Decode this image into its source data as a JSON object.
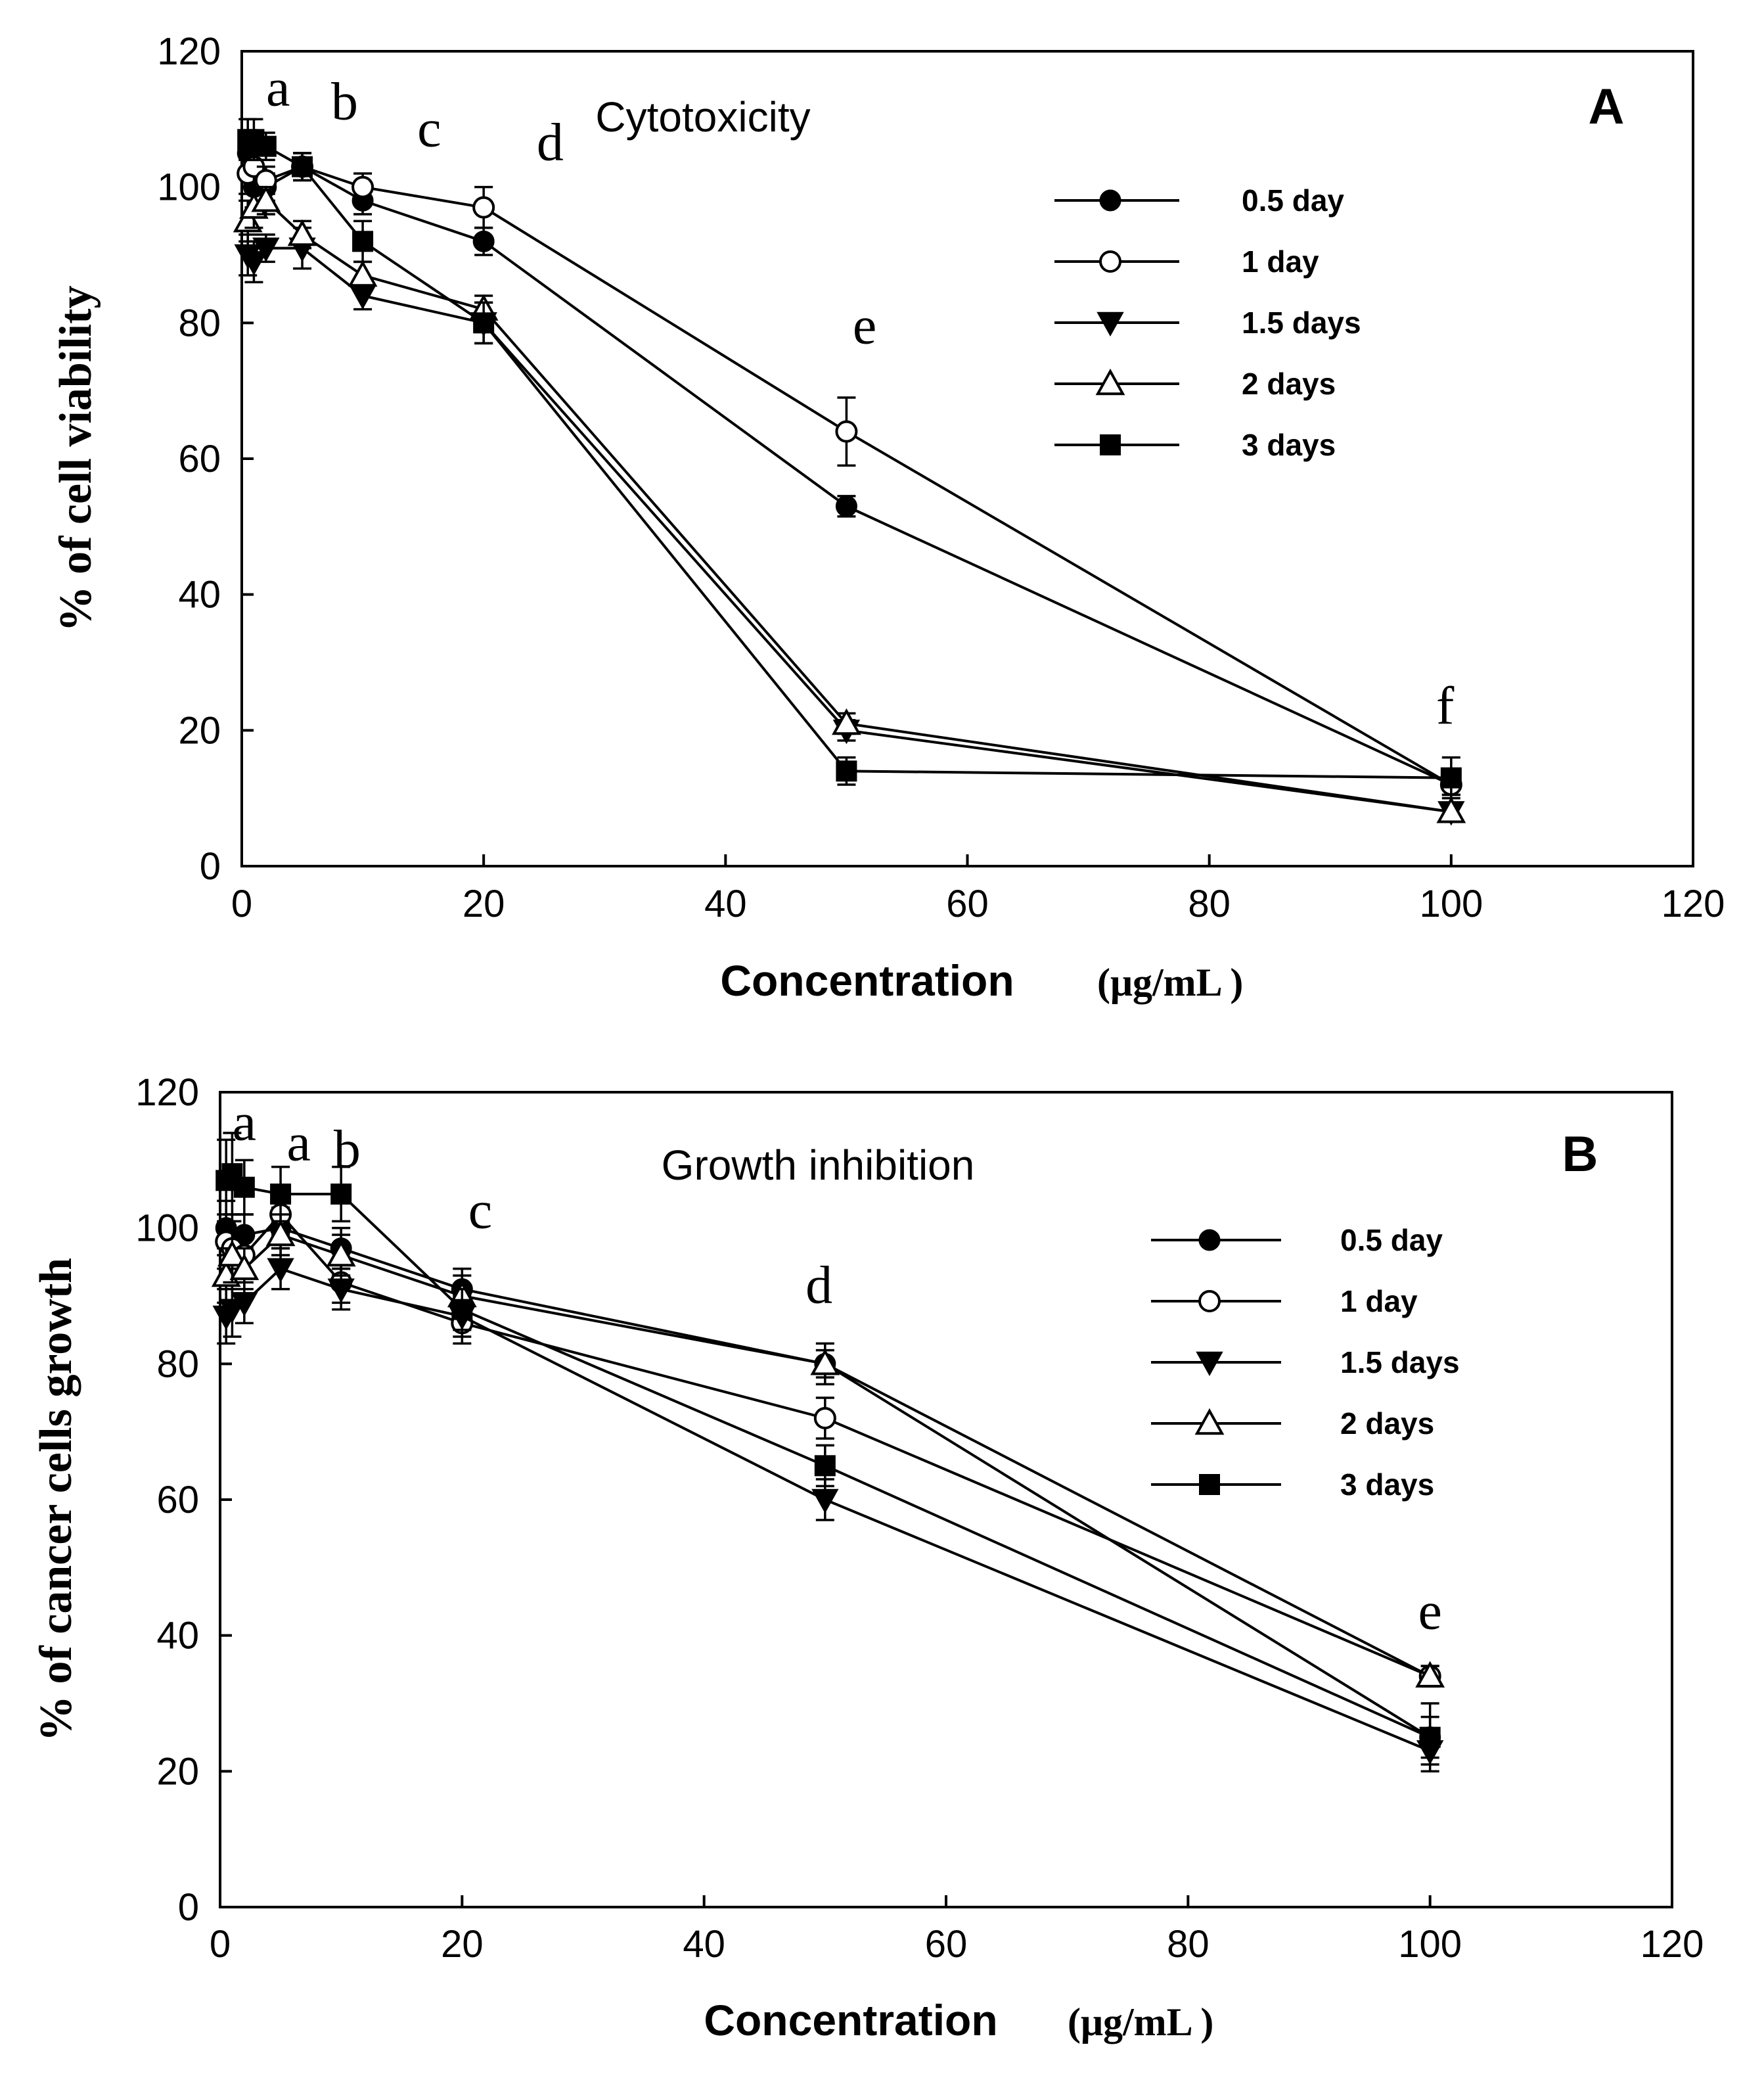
{
  "chart_data": [
    {
      "panel": "A",
      "type": "line",
      "title": "Cytotoxicity",
      "xlabel": "Concentration",
      "xlabel_unit": "(μg/mL )",
      "ylabel": "% of cell viability",
      "xlim": [
        0,
        120
      ],
      "ylim": [
        0,
        120
      ],
      "xticks": [
        0,
        20,
        40,
        60,
        80,
        100,
        120
      ],
      "yticks": [
        0,
        20,
        40,
        60,
        80,
        100,
        120
      ],
      "grid": false,
      "legend_position": "top-right",
      "x": [
        0.5,
        1,
        2,
        5,
        10,
        20,
        50,
        100
      ],
      "series": [
        {
          "name": "0.5 day",
          "marker": "filled-circle",
          "values": [
            105,
            100,
            100,
            103,
            98,
            92,
            53,
            12
          ],
          "errors": [
            3,
            3,
            2,
            2,
            2,
            2,
            1.5,
            1.5
          ]
        },
        {
          "name": "1 day",
          "marker": "open-circle",
          "values": [
            102,
            103,
            101,
            103,
            100,
            97,
            64,
            12
          ],
          "errors": [
            3,
            3,
            2,
            2,
            2,
            3,
            5,
            1.5
          ]
        },
        {
          "name": "1.5 days",
          "marker": "filled-triangle-down",
          "values": [
            90,
            89,
            91,
            91,
            84,
            80,
            20,
            8
          ],
          "errors": [
            3,
            3,
            2,
            3,
            2,
            3,
            1.5,
            1
          ]
        },
        {
          "name": "2 days",
          "marker": "open-triangle-up",
          "values": [
            95,
            97,
            98,
            93,
            87,
            82,
            21,
            8
          ],
          "errors": [
            3,
            3,
            2,
            2,
            2,
            2,
            1.5,
            1
          ]
        },
        {
          "name": "3 days",
          "marker": "filled-square",
          "values": [
            107,
            107,
            106,
            103,
            92,
            80,
            14,
            13
          ],
          "errors": [
            3,
            3,
            2,
            2,
            3,
            3,
            2,
            3
          ]
        }
      ],
      "annotations": [
        {
          "text": "a",
          "x": 3,
          "y": 112
        },
        {
          "text": "b",
          "x": 8.5,
          "y": 110
        },
        {
          "text": "c",
          "x": 15.5,
          "y": 106
        },
        {
          "text": "d",
          "x": 25.5,
          "y": 104
        },
        {
          "text": "e",
          "x": 51.5,
          "y": 77
        },
        {
          "text": "f",
          "x": 99.5,
          "y": 21
        }
      ]
    },
    {
      "panel": "B",
      "type": "line",
      "title": "Growth inhibition",
      "xlabel": "Concentration",
      "xlabel_unit": "(μg/mL )",
      "ylabel": "% of  cancer cells  growth",
      "xlim": [
        0,
        120
      ],
      "ylim": [
        0,
        120
      ],
      "xticks": [
        0,
        20,
        40,
        60,
        80,
        100,
        120
      ],
      "yticks": [
        0,
        20,
        40,
        60,
        80,
        100,
        120
      ],
      "grid": false,
      "legend_position": "top-right",
      "x": [
        0.5,
        1,
        2,
        5,
        10,
        20,
        50,
        100
      ],
      "series": [
        {
          "name": "0.5 day",
          "marker": "filled-circle",
          "values": [
            100,
            98,
            99,
            100,
            97,
            91,
            80,
            25
          ],
          "errors": [
            4,
            4,
            3,
            3,
            3,
            3,
            2,
            3
          ]
        },
        {
          "name": "1 day",
          "marker": "open-circle",
          "values": [
            98,
            97,
            96,
            102,
            92,
            86,
            72,
            34
          ],
          "errors": [
            4,
            4,
            3,
            3,
            3,
            3,
            3,
            1.5
          ]
        },
        {
          "name": "1.5 days",
          "marker": "filled-triangle-down",
          "values": [
            87,
            88,
            89,
            94,
            91,
            87,
            60,
            23
          ],
          "errors": [
            4,
            4,
            3,
            3,
            3,
            3,
            3,
            2
          ]
        },
        {
          "name": "2 days",
          "marker": "open-triangle-up",
          "values": [
            93,
            96,
            94,
            99,
            96,
            90,
            80,
            34
          ],
          "errors": [
            4,
            4,
            3,
            3,
            3,
            3,
            3,
            1.5
          ]
        },
        {
          "name": "3 days",
          "marker": "filled-square",
          "values": [
            107,
            108,
            106,
            105,
            105,
            88,
            65,
            25
          ],
          "errors": [
            6,
            6,
            4,
            4,
            4,
            3,
            3,
            5
          ]
        }
      ],
      "annotations": [
        {
          "text": "a",
          "x": 2,
          "y": 113
        },
        {
          "text": "a",
          "x": 6.5,
          "y": 110
        },
        {
          "text": "b",
          "x": 10.5,
          "y": 109
        },
        {
          "text": "c",
          "x": 21.5,
          "y": 100
        },
        {
          "text": "d",
          "x": 49.5,
          "y": 89
        },
        {
          "text": "e",
          "x": 100,
          "y": 41
        }
      ]
    }
  ]
}
